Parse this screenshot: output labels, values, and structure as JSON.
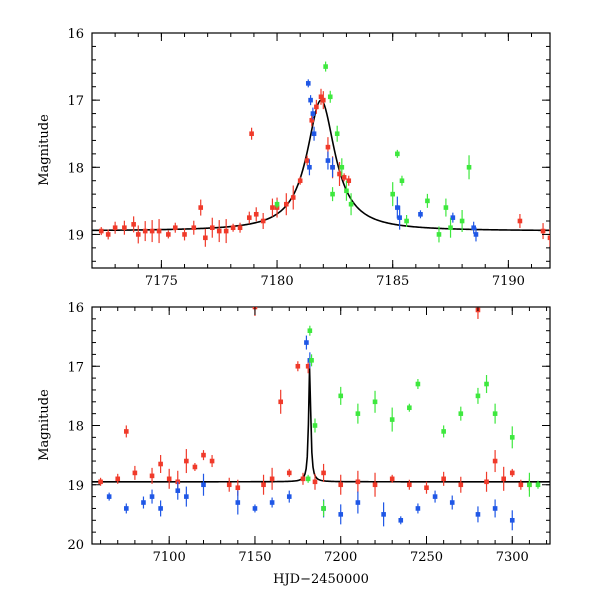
{
  "chart_data": [
    {
      "type": "scatter",
      "panel": "top",
      "xlim": [
        7172,
        7191.8
      ],
      "ylim": [
        19.5,
        16
      ],
      "ylabel": "Magnitude",
      "xlabel": "",
      "xticks": [
        7175,
        7180,
        7185,
        7190
      ],
      "yticks": [
        16,
        17,
        18,
        19
      ],
      "model": {
        "t0": 7181.9,
        "baseline": 18.95,
        "peak": 17.0,
        "tE": 0.7
      },
      "series": [
        {
          "name": "red",
          "color": "#f03a2a",
          "points": [
            [
              7172.4,
              18.95
            ],
            [
              7172.7,
              19.0
            ],
            [
              7173.0,
              18.9
            ],
            [
              7173.4,
              18.9
            ],
            [
              7173.8,
              18.85
            ],
            [
              7174.0,
              19.0
            ],
            [
              7174.3,
              18.95
            ],
            [
              7174.6,
              18.95
            ],
            [
              7174.9,
              18.95
            ],
            [
              7175.3,
              19.0
            ],
            [
              7175.6,
              18.9
            ],
            [
              7176.0,
              19.0
            ],
            [
              7176.4,
              18.9
            ],
            [
              7176.7,
              18.6
            ],
            [
              7176.9,
              19.05
            ],
            [
              7177.2,
              18.9
            ],
            [
              7177.5,
              18.95
            ],
            [
              7177.8,
              18.95
            ],
            [
              7178.1,
              18.9
            ],
            [
              7178.4,
              18.9
            ],
            [
              7178.8,
              18.75
            ],
            [
              7179.1,
              18.7
            ],
            [
              7179.4,
              18.8
            ],
            [
              7179.8,
              18.6
            ],
            [
              7180.0,
              18.6
            ],
            [
              7180.4,
              18.55
            ],
            [
              7180.7,
              18.45
            ],
            [
              7181.0,
              18.2
            ],
            [
              7181.3,
              17.9
            ],
            [
              7181.5,
              17.3
            ],
            [
              7181.7,
              17.1
            ],
            [
              7181.9,
              16.95
            ],
            [
              7182.0,
              17.0
            ],
            [
              7182.2,
              17.7
            ],
            [
              7182.4,
              18.0
            ],
            [
              7182.7,
              18.1
            ],
            [
              7182.9,
              18.15
            ],
            [
              7183.1,
              18.2
            ],
            [
              7178.9,
              17.5
            ],
            [
              7190.5,
              18.8
            ],
            [
              7191.5,
              18.95
            ],
            [
              7191.8,
              19.05
            ]
          ]
        },
        {
          "name": "blue",
          "color": "#1f57e6",
          "points": [
            [
              7181.35,
              16.75
            ],
            [
              7181.45,
              17.0
            ],
            [
              7181.55,
              17.2
            ],
            [
              7181.6,
              17.5
            ],
            [
              7181.4,
              18.0
            ],
            [
              7182.2,
              17.9
            ],
            [
              7182.4,
              18.0
            ],
            [
              7185.2,
              18.6
            ],
            [
              7185.3,
              18.75
            ],
            [
              7186.2,
              18.7
            ],
            [
              7187.6,
              18.75
            ],
            [
              7188.5,
              18.9
            ],
            [
              7188.6,
              19.0
            ]
          ]
        },
        {
          "name": "green",
          "color": "#3ee83e",
          "points": [
            [
              7180.0,
              18.55
            ],
            [
              7182.1,
              16.5
            ],
            [
              7182.3,
              16.95
            ],
            [
              7182.4,
              18.4
            ],
            [
              7182.6,
              17.5
            ],
            [
              7182.8,
              18.0
            ],
            [
              7183.0,
              18.35
            ],
            [
              7183.2,
              18.55
            ],
            [
              7185.0,
              18.4
            ],
            [
              7185.2,
              17.8
            ],
            [
              7185.4,
              18.2
            ],
            [
              7185.6,
              18.8
            ],
            [
              7186.5,
              18.5
            ],
            [
              7187.0,
              19.0
            ],
            [
              7187.3,
              18.6
            ],
            [
              7187.5,
              18.9
            ],
            [
              7188.0,
              18.8
            ],
            [
              7188.3,
              18.0
            ]
          ]
        }
      ]
    },
    {
      "type": "scatter",
      "panel": "bottom",
      "xlim": [
        7055,
        7322
      ],
      "ylim": [
        20,
        16
      ],
      "ylabel": "Magnitude",
      "xlabel": "HJD−2450000",
      "xticks": [
        7100,
        7150,
        7200,
        7250,
        7300
      ],
      "yticks": [
        16,
        17,
        18,
        19,
        20
      ],
      "model": {
        "t0": 7181.9,
        "baseline": 18.95,
        "peak": 17.0,
        "tE": 0.7
      },
      "series": [
        {
          "name": "red",
          "color": "#f03a2a",
          "points": [
            [
              7060,
              18.95
            ],
            [
              7070,
              18.9
            ],
            [
              7075,
              18.1
            ],
            [
              7080,
              18.8
            ],
            [
              7090,
              18.85
            ],
            [
              7095,
              18.65
            ],
            [
              7100,
              18.9
            ],
            [
              7105,
              18.95
            ],
            [
              7110,
              18.6
            ],
            [
              7115,
              18.7
            ],
            [
              7120,
              18.5
            ],
            [
              7125,
              18.6
            ],
            [
              7135,
              19.0
            ],
            [
              7140,
              19.05
            ],
            [
              7150,
              16.0
            ],
            [
              7155,
              19.0
            ],
            [
              7160,
              18.9
            ],
            [
              7165,
              17.6
            ],
            [
              7170,
              18.8
            ],
            [
              7175,
              17.0
            ],
            [
              7178,
              18.9
            ],
            [
              7181,
              17.0
            ],
            [
              7185,
              18.95
            ],
            [
              7190,
              18.8
            ],
            [
              7200,
              19.0
            ],
            [
              7210,
              18.95
            ],
            [
              7220,
              19.0
            ],
            [
              7230,
              18.9
            ],
            [
              7240,
              19.0
            ],
            [
              7250,
              19.05
            ],
            [
              7260,
              18.9
            ],
            [
              7270,
              19.0
            ],
            [
              7280,
              16.05
            ],
            [
              7285,
              18.95
            ],
            [
              7290,
              18.6
            ],
            [
              7295,
              18.9
            ],
            [
              7300,
              18.8
            ],
            [
              7305,
              19.0
            ],
            [
              7310,
              19.0
            ]
          ]
        },
        {
          "name": "blue",
          "color": "#1f57e6",
          "points": [
            [
              7065,
              19.2
            ],
            [
              7075,
              19.4
            ],
            [
              7085,
              19.3
            ],
            [
              7090,
              19.2
            ],
            [
              7095,
              19.4
            ],
            [
              7105,
              19.1
            ],
            [
              7110,
              19.2
            ],
            [
              7120,
              19.0
            ],
            [
              7140,
              19.3
            ],
            [
              7150,
              19.4
            ],
            [
              7160,
              19.3
            ],
            [
              7170,
              19.2
            ],
            [
              7180,
              16.6
            ],
            [
              7182,
              16.9
            ],
            [
              7190,
              19.4
            ],
            [
              7200,
              19.5
            ],
            [
              7210,
              19.3
            ],
            [
              7225,
              19.5
            ],
            [
              7235,
              19.6
            ],
            [
              7245,
              19.4
            ],
            [
              7255,
              19.2
            ],
            [
              7265,
              19.3
            ],
            [
              7280,
              19.5
            ],
            [
              7290,
              19.4
            ],
            [
              7300,
              19.6
            ]
          ]
        },
        {
          "name": "green",
          "color": "#3ee83e",
          "points": [
            [
              7181,
              18.9
            ],
            [
              7182,
              16.4
            ],
            [
              7183,
              16.9
            ],
            [
              7185,
              18.0
            ],
            [
              7190,
              19.4
            ],
            [
              7200,
              17.5
            ],
            [
              7210,
              17.8
            ],
            [
              7220,
              17.6
            ],
            [
              7230,
              17.9
            ],
            [
              7240,
              17.7
            ],
            [
              7245,
              17.3
            ],
            [
              7260,
              18.1
            ],
            [
              7270,
              17.8
            ],
            [
              7280,
              17.5
            ],
            [
              7285,
              17.3
            ],
            [
              7290,
              17.8
            ],
            [
              7300,
              18.2
            ],
            [
              7310,
              19.0
            ],
            [
              7315,
              19.0
            ]
          ]
        }
      ]
    }
  ]
}
